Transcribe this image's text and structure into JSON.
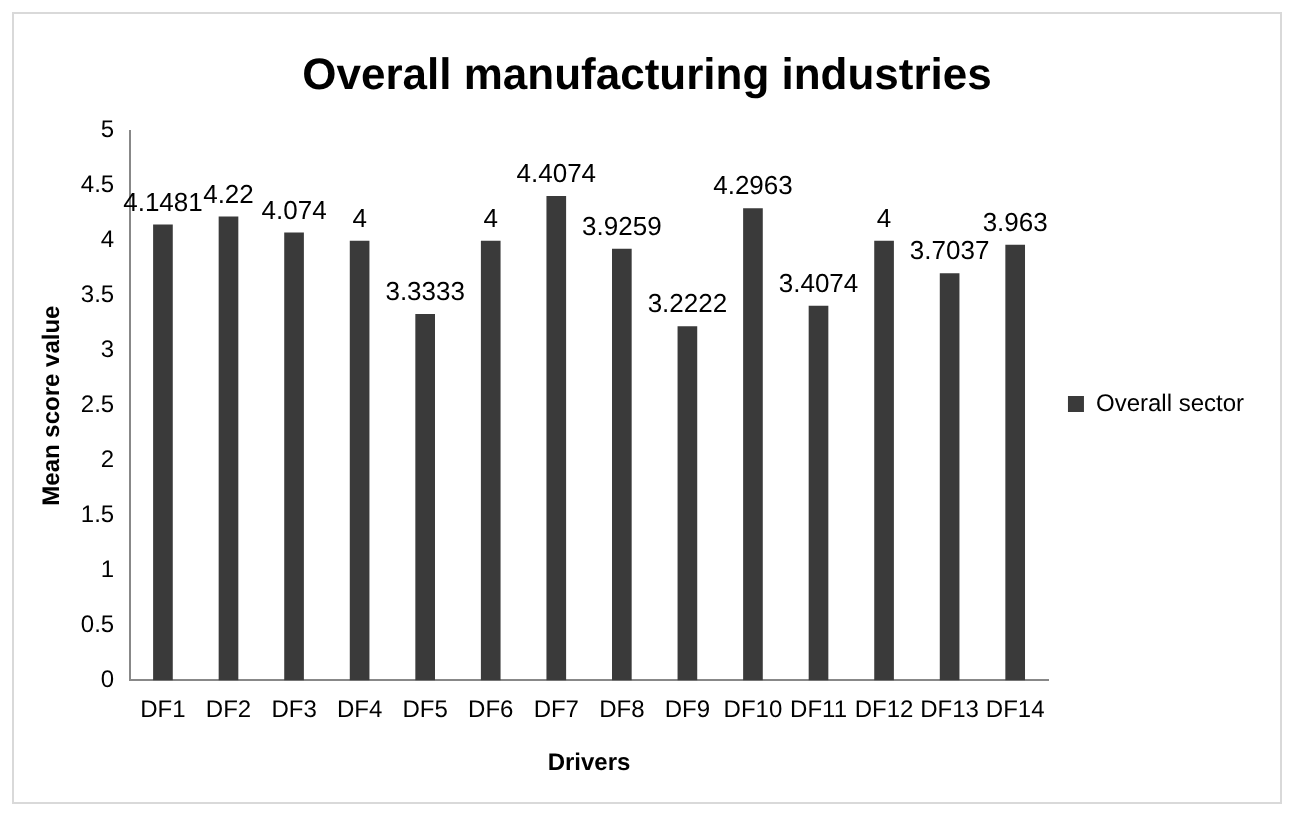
{
  "chart_data": {
    "type": "bar",
    "title": "Overall manufacturing industries",
    "xlabel": "Drivers",
    "ylabel": "Mean score value",
    "categories": [
      "DF1",
      "DF2",
      "DF3",
      "DF4",
      "DF5",
      "DF6",
      "DF7",
      "DF8",
      "DF9",
      "DF10",
      "DF11",
      "DF12",
      "DF13",
      "DF14"
    ],
    "series": [
      {
        "name": "Overall sector",
        "color": "#3a3a3a",
        "values": [
          4.1481,
          4.22,
          4.074,
          4,
          3.3333,
          4,
          4.4074,
          3.9259,
          3.2222,
          4.2963,
          3.4074,
          4,
          3.7037,
          3.963
        ]
      }
    ],
    "ylim": [
      0,
      5
    ],
    "yticks": [
      0,
      0.5,
      1,
      1.5,
      2,
      2.5,
      3,
      3.5,
      4,
      4.5,
      5
    ],
    "grid": false,
    "legend": "right",
    "data_labels": true
  }
}
